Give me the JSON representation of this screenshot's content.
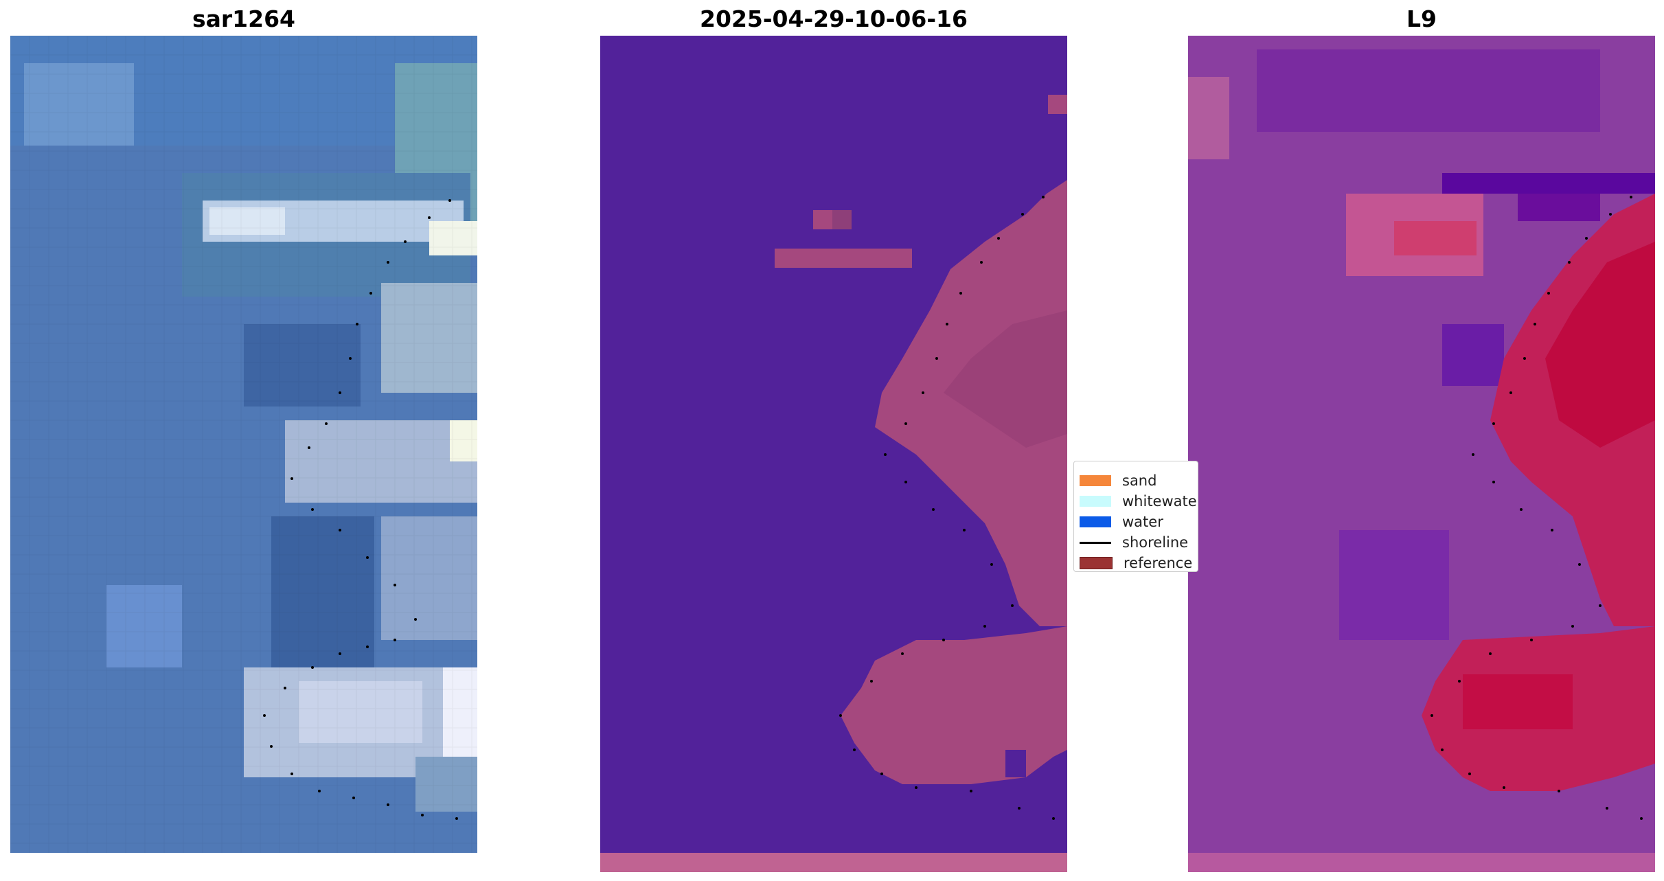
{
  "panels": [
    {
      "title": "sar1264"
    },
    {
      "title": "2025-04-29-10-06-16"
    },
    {
      "title": "L9"
    }
  ],
  "legend": {
    "items": [
      {
        "label": "sand",
        "color": "#f5863a",
        "kind": "patch"
      },
      {
        "label": "whitewater",
        "color": "#c8fbfd",
        "kind": "patch"
      },
      {
        "label": "water",
        "color": "#0c5be8",
        "kind": "patch"
      },
      {
        "label": "shoreline",
        "color": "#000000",
        "kind": "line"
      },
      {
        "label": "reference",
        "color": "#9b3333",
        "kind": "patch"
      }
    ]
  },
  "colors": {
    "rgb_water": "#4f79b8",
    "class_water_overlay": "#52229a",
    "class_land_overlay": "#a5487e",
    "index_water": "#8a3ea0",
    "index_land": "#c0103e"
  }
}
